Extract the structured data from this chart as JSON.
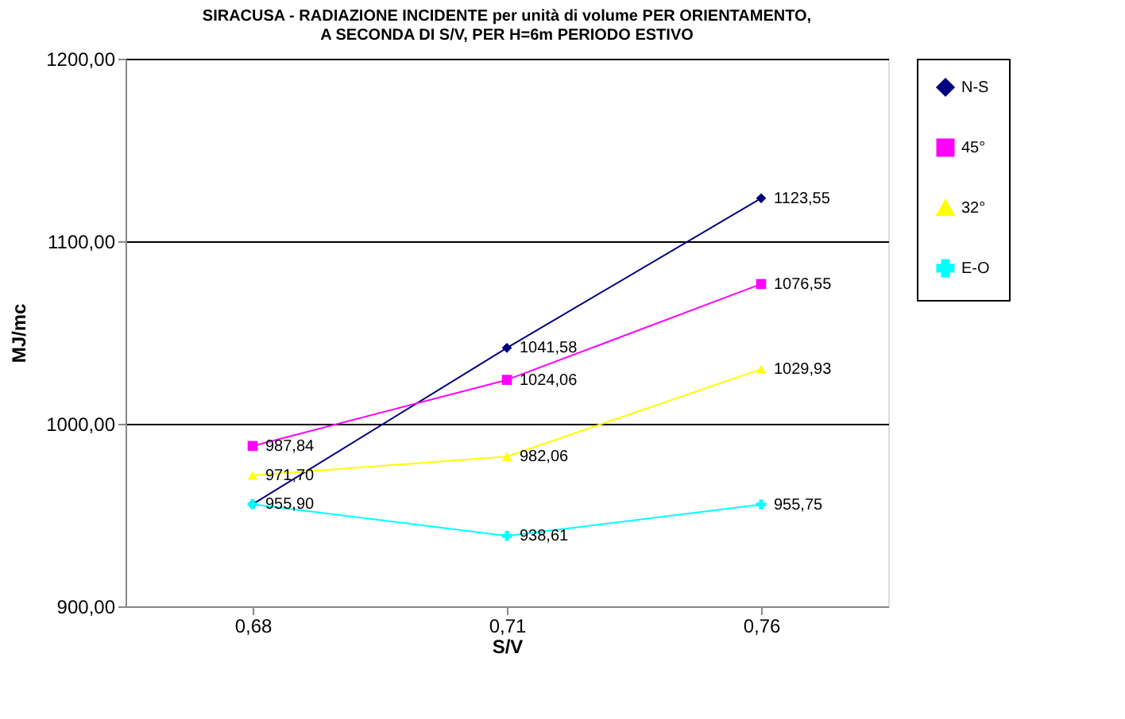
{
  "chart_data": {
    "type": "line",
    "title": "SIRACUSA - RADIAZIONE INCIDENTE per unità di volume  PER ORIENTAMENTO,\nA SECONDA DI S/V, PER H=6m           PERIODO ESTIVO",
    "xlabel": "S/V",
    "ylabel": "MJ/mc",
    "categories": [
      "0,68",
      "0,71",
      "0,76"
    ],
    "ylim": [
      900,
      1200
    ],
    "yticks": [
      {
        "value": 900,
        "label": "900,00"
      },
      {
        "value": 1000,
        "label": "1000,00"
      },
      {
        "value": 1100,
        "label": "1100,00"
      },
      {
        "value": 1200,
        "label": "1200,00"
      }
    ],
    "grid": "y",
    "legend": "right",
    "line_style": "solid",
    "series": [
      {
        "name": "N-S",
        "color": "#000080",
        "marker": "diamond",
        "values": [
          955.9,
          1041.58,
          1123.55
        ],
        "value_labels": [
          "955,90",
          "1041,58",
          "1123,55"
        ]
      },
      {
        "name": "45°",
        "color": "#ff00ff",
        "marker": "square",
        "values": [
          987.84,
          1024.06,
          1076.55
        ],
        "value_labels": [
          "987,84",
          "1024,06",
          "1076,55"
        ]
      },
      {
        "name": "32°",
        "color": "#ffff00",
        "marker": "triangle",
        "values": [
          971.7,
          982.06,
          1029.93
        ],
        "value_labels": [
          "971,70",
          "982,06",
          "1029,93"
        ]
      },
      {
        "name": "E-O",
        "color": "#00ffff",
        "marker": "cross",
        "values": [
          955.9,
          938.61,
          955.75
        ],
        "value_labels": [
          null,
          "938,61",
          "955,75"
        ]
      }
    ]
  }
}
